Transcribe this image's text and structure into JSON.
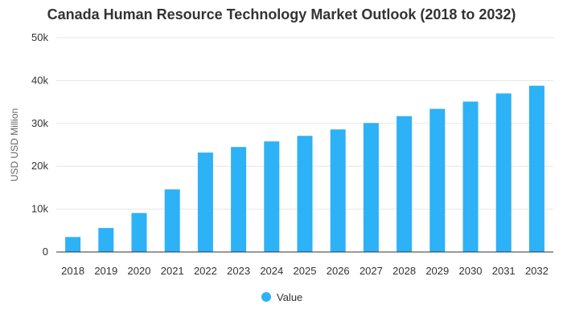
{
  "chart_data": {
    "type": "bar",
    "title": "Canada Human Resource Technology Market Outlook (2018 to 2032)",
    "xlabel": "",
    "ylabel": "USD USD Million",
    "categories": [
      "2018",
      "2019",
      "2020",
      "2021",
      "2022",
      "2023",
      "2024",
      "2025",
      "2026",
      "2027",
      "2028",
      "2029",
      "2030",
      "2031",
      "2032"
    ],
    "series": [
      {
        "name": "Value",
        "values": [
          3500,
          5600,
          9100,
          14600,
          23200,
          24500,
          25800,
          27100,
          28600,
          30100,
          31700,
          33400,
          35100,
          37000,
          38800
        ]
      }
    ],
    "ylim": [
      0,
      50000
    ],
    "yticks": [
      0,
      10000,
      20000,
      30000,
      40000,
      50000
    ],
    "ytick_labels": [
      "0",
      "10k",
      "20k",
      "30k",
      "40k",
      "50k"
    ],
    "grid": true,
    "legend_position": "bottom",
    "colors": {
      "bar": "#2db1f7",
      "grid": "#e6e6e6",
      "axis": "#333333"
    }
  }
}
